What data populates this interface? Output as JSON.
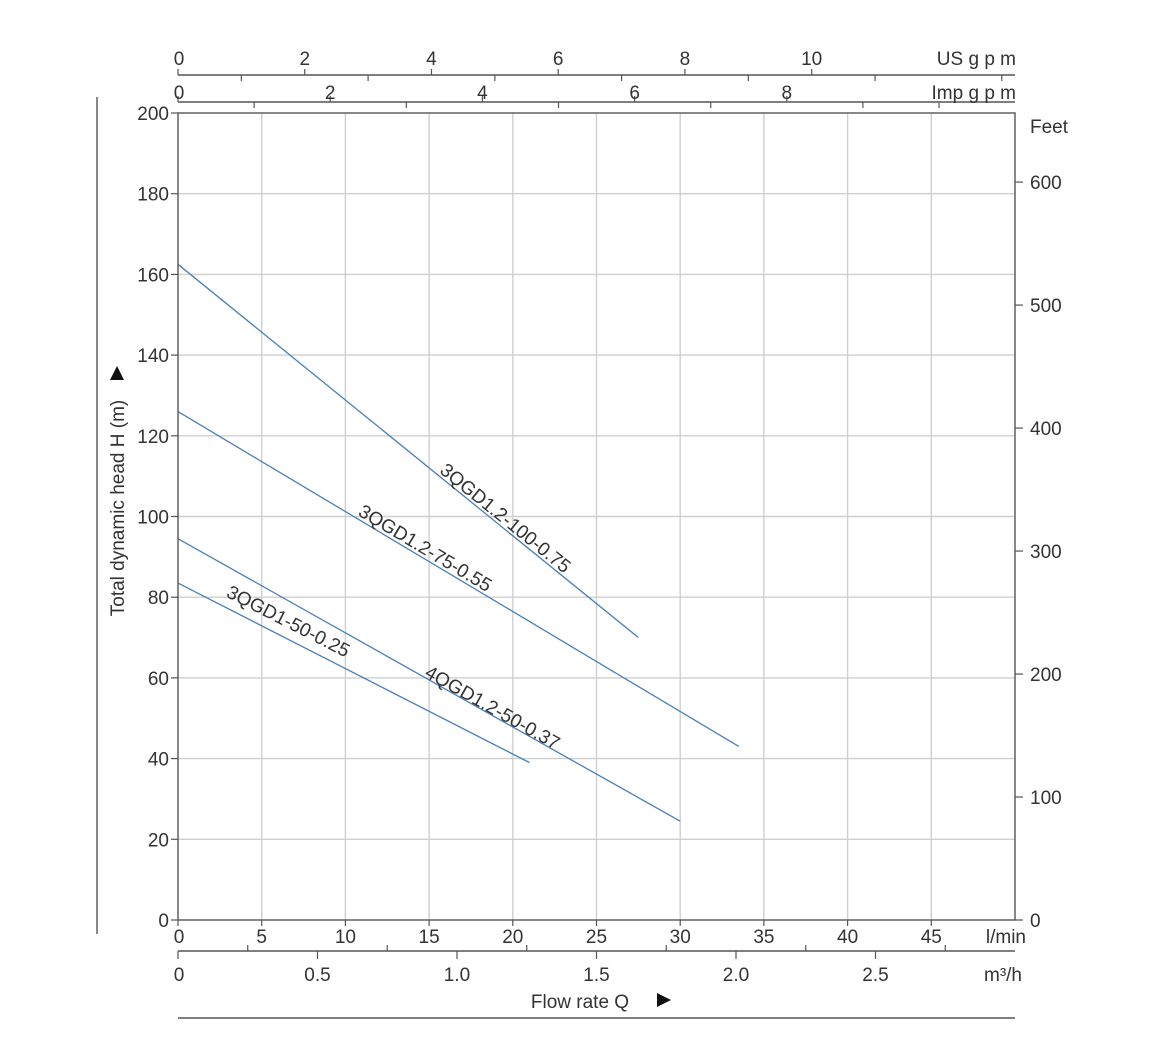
{
  "chart_data": {
    "type": "line",
    "title": "",
    "xlabel": "Flow rate Q",
    "ylabel": "Total dynamic head H (m)",
    "x_unit": "l/min",
    "xlim": [
      0,
      50
    ],
    "ylim": [
      0,
      200
    ],
    "x_ticks": [
      0,
      5,
      10,
      15,
      20,
      25,
      30,
      35,
      40,
      45
    ],
    "y_ticks": [
      0,
      20,
      40,
      60,
      80,
      100,
      120,
      140,
      160,
      180,
      200
    ],
    "grid": true,
    "secondary_axes": {
      "m3h": {
        "unit": "m³/h",
        "ticks": [
          {
            "value": 0,
            "label": "0"
          },
          {
            "value": 0.5,
            "label": "0.5"
          },
          {
            "value": 1.0,
            "label": "1.0"
          },
          {
            "value": 1.5,
            "label": "1.5"
          },
          {
            "value": 2.0,
            "label": "2.0"
          },
          {
            "value": 2.5,
            "label": "2.5"
          }
        ],
        "minor_ticks": [
          0.25,
          0.75,
          1.25,
          1.75,
          2.25,
          2.75
        ]
      },
      "us_gpm": {
        "unit": "US g p m",
        "ticks": [
          {
            "value": 0,
            "label": "0"
          },
          {
            "value": 2,
            "label": "2"
          },
          {
            "value": 4,
            "label": "4"
          },
          {
            "value": 6,
            "label": "6"
          },
          {
            "value": 8,
            "label": "8"
          },
          {
            "value": 10,
            "label": "10"
          }
        ],
        "minor_ticks": [
          1,
          3,
          5,
          7,
          9,
          11,
          13
        ]
      },
      "imp_gpm": {
        "unit": "Imp g p m",
        "ticks": [
          {
            "value": 0,
            "label": "0"
          },
          {
            "value": 2,
            "label": "2"
          },
          {
            "value": 4,
            "label": "4"
          },
          {
            "value": 6,
            "label": "6"
          },
          {
            "value": 8,
            "label": "8"
          }
        ],
        "minor_ticks": [
          1,
          3,
          5,
          7,
          9,
          10,
          11
        ]
      },
      "feet": {
        "unit": "Feet",
        "ticks": [
          {
            "value": 0,
            "label": "0"
          },
          {
            "value": 100,
            "label": "100"
          },
          {
            "value": 200,
            "label": "200"
          },
          {
            "value": 300,
            "label": "300"
          },
          {
            "value": 400,
            "label": "400"
          },
          {
            "value": 500,
            "label": "500"
          },
          {
            "value": 600,
            "label": "600"
          }
        ]
      }
    },
    "series": [
      {
        "name": "3QGD1.2-100-0.75",
        "x": [
          0,
          27.5
        ],
        "y": [
          162.5,
          70
        ]
      },
      {
        "name": "3QGD1.2-75-0.55",
        "x": [
          0,
          33.5
        ],
        "y": [
          126,
          43
        ]
      },
      {
        "name": "4QGD1.2-50-0.37",
        "x": [
          0,
          30
        ],
        "y": [
          94.5,
          24.5
        ]
      },
      {
        "name": "3QGD1-50-0.25",
        "x": [
          0,
          21
        ],
        "y": [
          83.5,
          39
        ]
      }
    ]
  },
  "colors": {
    "curve": "#4a7fb5"
  }
}
